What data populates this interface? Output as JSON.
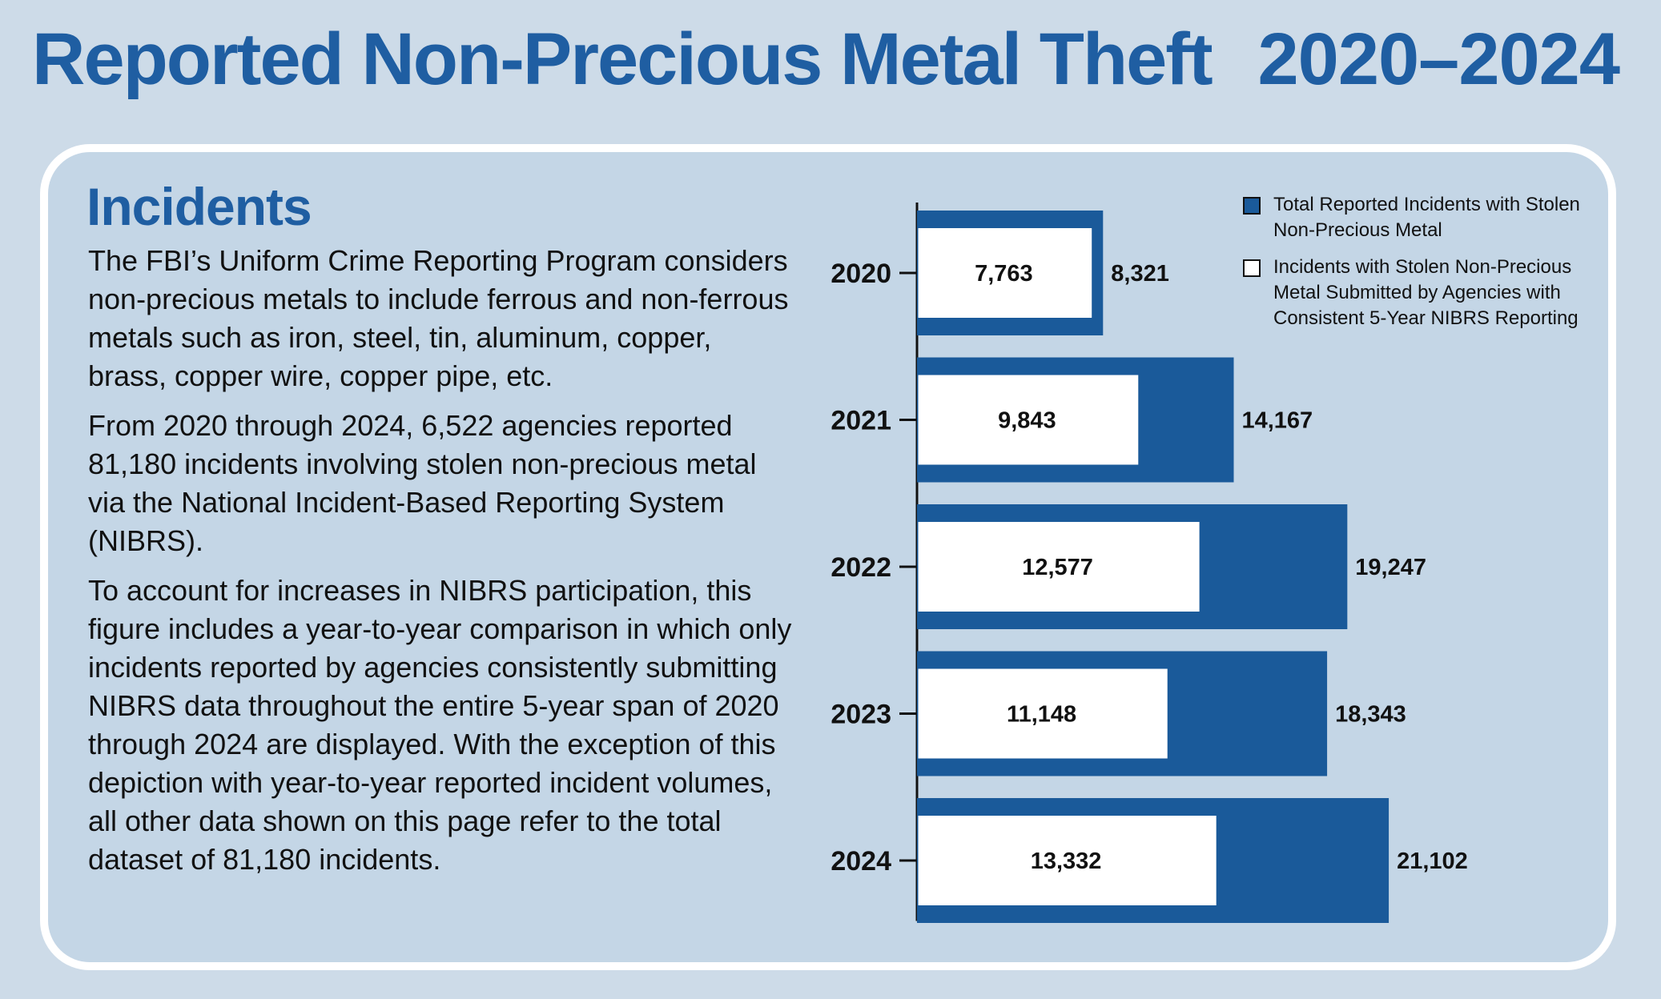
{
  "header": {
    "title": "Reported Non-Precious Metal Theft",
    "years": "2020–2024"
  },
  "panel": {
    "section_title": "Incidents",
    "paragraphs": [
      "The FBI’s Uniform Crime Reporting Program considers non-precious metals to include ferrous and non-ferrous metals such as iron, steel, tin, aluminum, copper, brass, copper wire, copper pipe, etc.",
      "From 2020 through 2024, 6,522 agencies reported 81,180 incidents involving stolen non-precious metal via the National Incident-Based Reporting System (NIBRS).",
      "To account for increases in NIBRS participation, this figure includes a year-to-year comparison in which only incidents reported by agencies consistently submitting NIBRS data throughout the entire 5-year span of 2020 through 2024 are displayed. With the exception of this depiction with year-to-year reported incident volumes, all other data shown on this page refer to the total dataset of 81,180 incidents."
    ]
  },
  "chart_data": {
    "type": "bar",
    "orientation": "horizontal",
    "categories": [
      "2020",
      "2021",
      "2022",
      "2023",
      "2024"
    ],
    "series": [
      {
        "name": "Total Reported Incidents with Stolen Non-Precious Metal",
        "values": [
          8321,
          14167,
          19247,
          18343,
          21102
        ],
        "labels": [
          "8,321",
          "14,167",
          "19,247",
          "18,343",
          "21,102"
        ],
        "color": "#1a5a9a"
      },
      {
        "name": "Incidents with Stolen Non-Precious Metal Submitted by Agencies with Consistent 5-Year NIBRS Reporting",
        "values": [
          7763,
          9843,
          12577,
          11148,
          13332
        ],
        "labels": [
          "7,763",
          "9,843",
          "12,577",
          "11,148",
          "13,332"
        ],
        "color": "#ffffff"
      }
    ],
    "xlim": [
      0,
      24000
    ],
    "grid": false,
    "legend_position": "top-right"
  },
  "legend": {
    "total_label": "Total Reported Incidents with Stolen Non-Precious Metal",
    "consistent_label": "Incidents with Stolen Non-Precious Metal Submitted by Agencies with Consistent 5-Year NIBRS Reporting"
  },
  "colors": {
    "title": "#1f5ea2",
    "page_background": "#cddbe8",
    "panel_background": "#c4d6e6",
    "total_bar": "#1a5a9a",
    "consistent_bar": "#ffffff"
  }
}
